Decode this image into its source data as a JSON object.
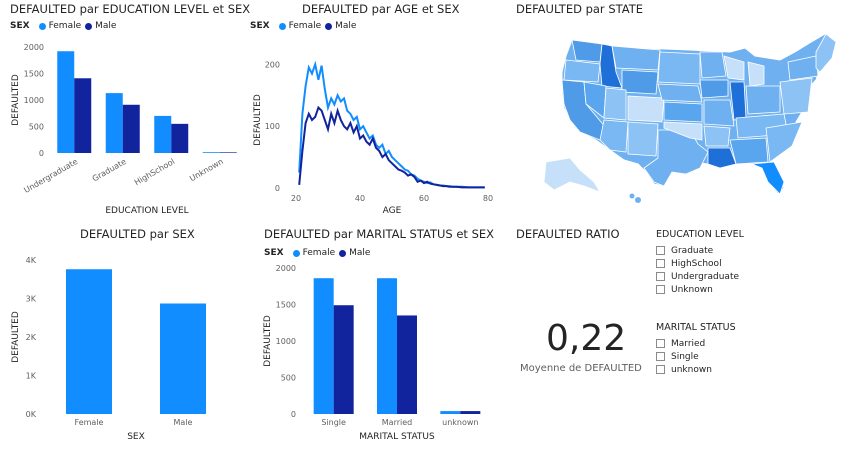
{
  "colors": {
    "female": "#118dff",
    "male": "#12239e",
    "axis_text": "#605e5c",
    "map_base": "#6fb1f0"
  },
  "legend": {
    "label": "SEX",
    "female": "Female",
    "male": "Male"
  },
  "edu_chart": {
    "title": "DEFAULTED par EDUCATION LEVEL et SEX",
    "chart_data": {
      "type": "bar",
      "title": "DEFAULTED par EDUCATION LEVEL et SEX",
      "xlabel": "EDUCATION LEVEL",
      "ylabel": "DEFAULTED",
      "categories": [
        "Undergraduate",
        "Graduate",
        "HighSchool",
        "Unknown"
      ],
      "series": [
        {
          "name": "Female",
          "values": [
            1920,
            1130,
            700,
            15
          ]
        },
        {
          "name": "Male",
          "values": [
            1410,
            910,
            550,
            12
          ]
        }
      ],
      "ylim": [
        0,
        2000
      ],
      "yticks": [
        "0",
        "500",
        "1000",
        "1500",
        "2000"
      ]
    }
  },
  "age_chart": {
    "title": "DEFAULTED par AGE et SEX",
    "chart_data": {
      "type": "line",
      "title": "DEFAULTED par AGE et SEX",
      "xlabel": "AGE",
      "ylabel": "DEFAULTED",
      "xlim": [
        20,
        80
      ],
      "ylim": [
        0,
        220
      ],
      "xticks": [
        "20",
        "40",
        "60",
        "80"
      ],
      "yticks": [
        "0",
        "100",
        "200"
      ],
      "series": [
        {
          "name": "Female",
          "x": [
            21,
            22,
            23,
            24,
            25,
            26,
            27,
            28,
            29,
            30,
            31,
            32,
            33,
            34,
            35,
            36,
            37,
            38,
            39,
            40,
            41,
            42,
            43,
            44,
            45,
            46,
            47,
            48,
            49,
            50,
            51,
            52,
            53,
            54,
            55,
            56,
            57,
            58,
            59,
            60,
            61,
            62,
            63,
            64,
            65,
            66,
            67,
            68,
            69,
            70,
            72,
            74,
            76,
            79
          ],
          "y": [
            25,
            120,
            165,
            195,
            185,
            200,
            175,
            198,
            160,
            130,
            145,
            135,
            150,
            140,
            145,
            125,
            120,
            110,
            115,
            95,
            100,
            90,
            80,
            85,
            70,
            65,
            70,
            55,
            60,
            50,
            45,
            40,
            35,
            30,
            28,
            22,
            20,
            15,
            12,
            10,
            8,
            9,
            6,
            5,
            4,
            4,
            3,
            3,
            2,
            2,
            2,
            1,
            1,
            1
          ]
        },
        {
          "name": "Male",
          "x": [
            21,
            22,
            23,
            24,
            25,
            26,
            27,
            28,
            29,
            30,
            31,
            32,
            33,
            34,
            35,
            36,
            37,
            38,
            39,
            40,
            41,
            42,
            43,
            44,
            45,
            46,
            47,
            48,
            49,
            50,
            51,
            52,
            53,
            54,
            55,
            56,
            57,
            58,
            59,
            60,
            61,
            62,
            63,
            64,
            65,
            66,
            67,
            68,
            69,
            70,
            72,
            74,
            76,
            79
          ],
          "y": [
            5,
            60,
            105,
            120,
            110,
            115,
            130,
            125,
            110,
            95,
            120,
            105,
            125,
            110,
            100,
            95,
            105,
            90,
            100,
            80,
            85,
            75,
            70,
            80,
            65,
            60,
            50,
            55,
            45,
            40,
            35,
            30,
            28,
            25,
            20,
            22,
            18,
            10,
            12,
            8,
            10,
            7,
            6,
            5,
            4,
            3,
            3,
            2,
            2,
            2,
            1,
            1,
            1,
            1
          ]
        }
      ]
    }
  },
  "state_map": {
    "title": "DEFAULTED par STATE"
  },
  "sex_chart": {
    "title": "DEFAULTED par SEX",
    "chart_data": {
      "type": "bar",
      "title": "DEFAULTED par SEX",
      "xlabel": "SEX",
      "ylabel": "DEFAULTED",
      "categories": [
        "Female",
        "Male"
      ],
      "values": [
        3760,
        2870
      ],
      "ylim": [
        0,
        4000
      ],
      "yticks": [
        "0K",
        "1K",
        "2K",
        "3K",
        "4K"
      ]
    }
  },
  "marital_chart": {
    "title": "DEFAULTED par MARITAL STATUS et SEX",
    "chart_data": {
      "type": "bar",
      "title": "DEFAULTED par MARITAL STATUS et SEX",
      "xlabel": "MARITAL STATUS",
      "ylabel": "DEFAULTED",
      "categories": [
        "Single",
        "Married",
        "unknown"
      ],
      "series": [
        {
          "name": "Female",
          "values": [
            1860,
            1860,
            40
          ]
        },
        {
          "name": "Male",
          "values": [
            1490,
            1350,
            40
          ]
        }
      ],
      "ylim": [
        0,
        2000
      ],
      "yticks": [
        "0",
        "500",
        "1000",
        "1500",
        "2000"
      ]
    }
  },
  "ratio_card": {
    "title": "DEFAULTED RATIO",
    "value": "0,22",
    "label": "Moyenne de DEFAULTED"
  },
  "slicer_education": {
    "title": "EDUCATION LEVEL",
    "options": [
      "Graduate",
      "HighSchool",
      "Undergraduate",
      "Unknown"
    ]
  },
  "slicer_marital": {
    "title": "MARITAL STATUS",
    "options": [
      "Married",
      "Single",
      "unknown"
    ]
  }
}
